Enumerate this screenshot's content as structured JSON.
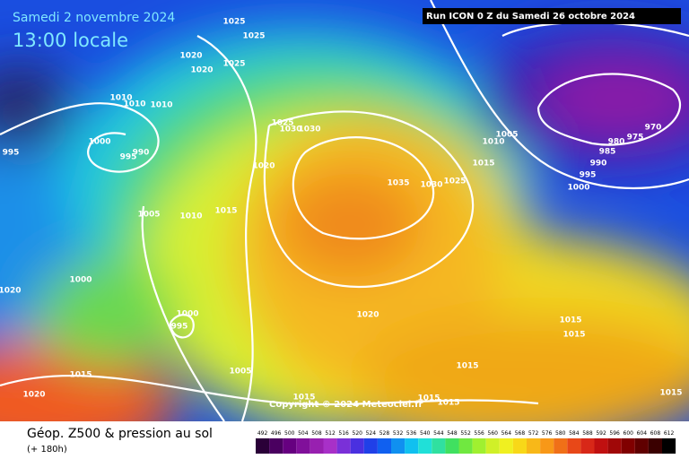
{
  "header": {
    "date": "Samedi 2 novembre 2024",
    "time": "13:00 locale",
    "run": "Run ICON 0 Z du Samedi 26 octobre 2024"
  },
  "isobar_labels": [
    "1025",
    "1025",
    "1020",
    "1020",
    "1025",
    "1010",
    "1010",
    "1010",
    "1000",
    "990",
    "995",
    "995",
    "1025",
    "1030",
    "1030",
    "1020",
    "1005",
    "1010",
    "1015",
    "1035",
    "1030",
    "1025",
    "1010",
    "1005",
    "1015",
    "970",
    "975",
    "980",
    "985",
    "990",
    "995",
    "1000",
    "1000",
    "1020",
    "1000",
    "995",
    "1020",
    "1015",
    "1015",
    "1015",
    "1005",
    "1015",
    "1020",
    "1015",
    "1015",
    "1015",
    "1015"
  ],
  "copyright": "Copyright © 2024 Meteociel.fr",
  "footer": {
    "title": "Géop. Z500 & pression au sol",
    "lead": "(+ 180h)"
  },
  "scale": [
    "492",
    "496",
    "500",
    "504",
    "508",
    "512",
    "516",
    "520",
    "524",
    "528",
    "532",
    "536",
    "540",
    "544",
    "548",
    "552",
    "556",
    "560",
    "564",
    "568",
    "572",
    "576",
    "580",
    "584",
    "588",
    "592",
    "596",
    "600",
    "604",
    "608",
    "612"
  ]
}
